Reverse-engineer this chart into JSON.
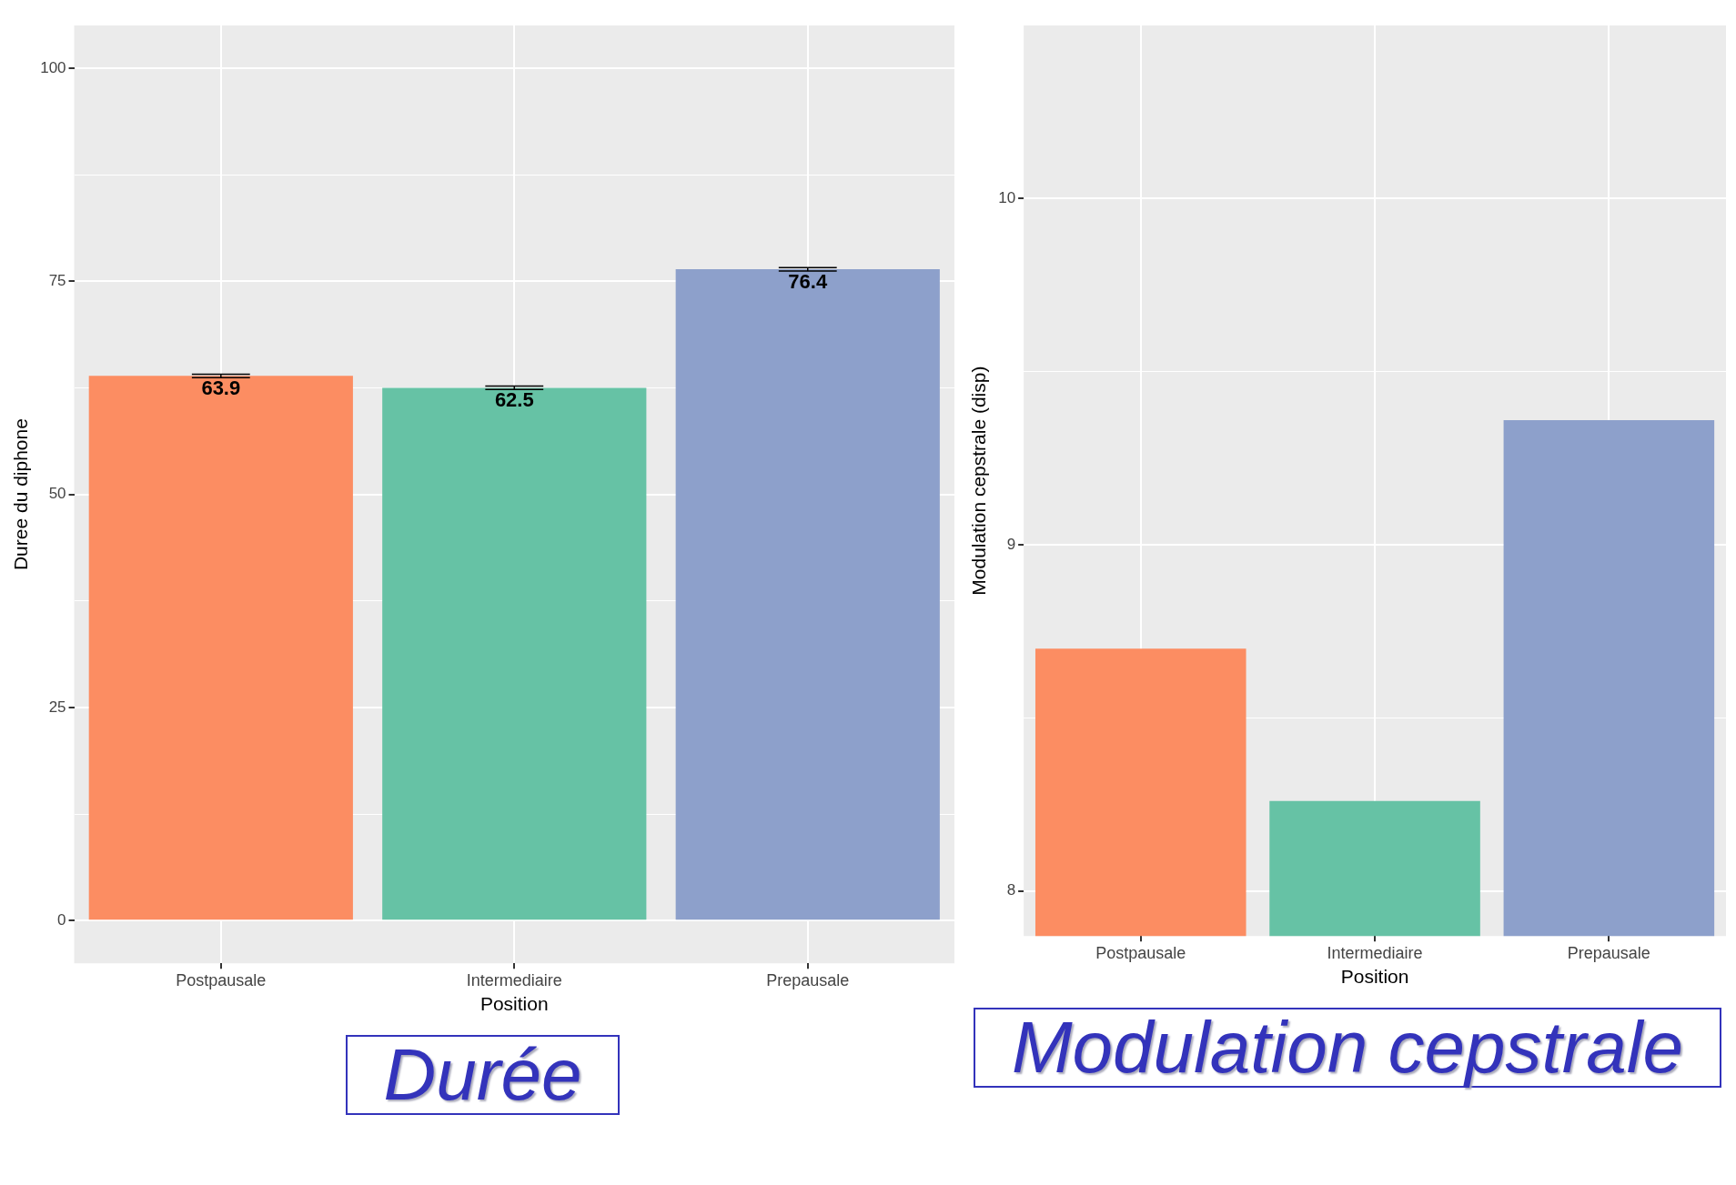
{
  "chart_data": [
    {
      "type": "bar",
      "title": "Durée",
      "xlabel": "Position",
      "ylabel": "Duree du diphone",
      "categories": [
        "Postpausale",
        "Intermediaire",
        "Prepausale"
      ],
      "values": [
        63.9,
        62.5,
        76.4
      ],
      "errors": [
        0.2,
        0.2,
        0.2
      ],
      "colors": [
        "#fc8d62",
        "#66c2a5",
        "#8da0cb"
      ],
      "ylim": [
        -5,
        105
      ],
      "yticks": [
        0,
        {
          "value": 12.5,
          "label": null
        },
        25,
        {
          "value": 37.5,
          "label": null
        },
        50,
        {
          "value": 62.5,
          "label": null
        },
        75,
        {
          "value": 87.5,
          "label": null
        },
        100
      ],
      "grid": true,
      "data_labels": true
    },
    {
      "type": "bar",
      "title": "Modulation cepstrale",
      "xlabel": "Position",
      "ylabel": "Modulation cepstrale (disp)",
      "categories": [
        "Postpausale",
        "Intermediaire",
        "Prepausale"
      ],
      "values": [
        8.7,
        8.26,
        9.36
      ],
      "colors": [
        "#fc8d62",
        "#66c2a5",
        "#8da0cb"
      ],
      "ylim": [
        7.87,
        10.5
      ],
      "yticks": [
        8,
        {
          "value": 8.5,
          "label": null
        },
        9,
        {
          "value": 9.5,
          "label": null
        },
        10
      ],
      "grid": true
    }
  ]
}
